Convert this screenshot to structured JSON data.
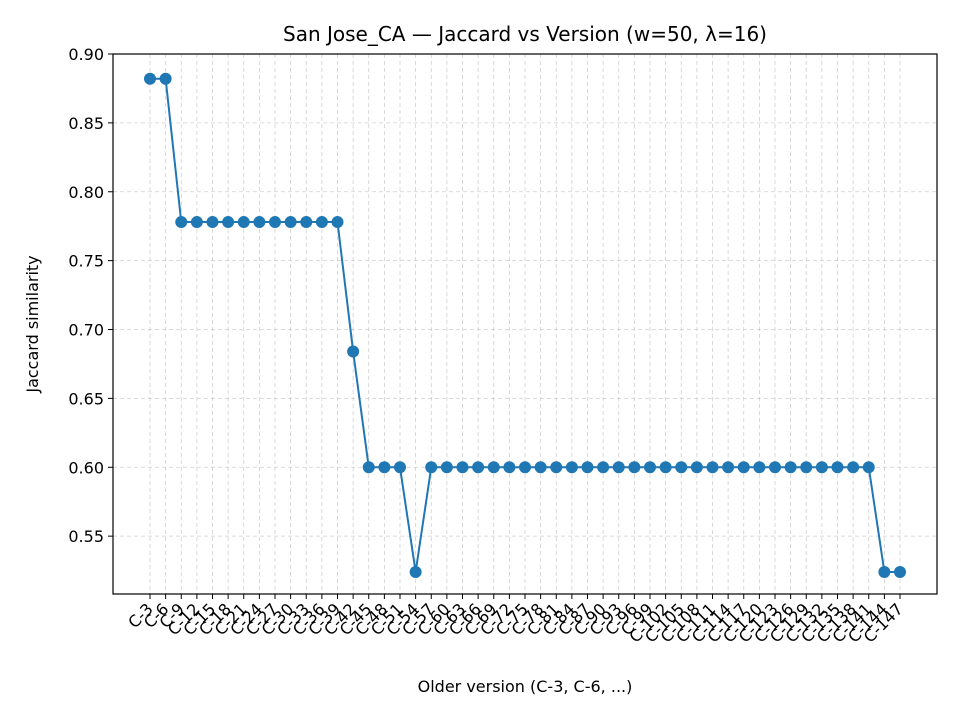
{
  "chart_data": {
    "type": "line",
    "title": "San Jose_CA — Jaccard vs Version (w=50, λ=16)",
    "xlabel": "Older version (C-3, C-6, ...)",
    "ylabel": "Jaccard similarity",
    "ylim": [
      0.508,
      0.9
    ],
    "yticks": [
      "0.55",
      "0.60",
      "0.65",
      "0.70",
      "0.75",
      "0.80",
      "0.85",
      "0.90"
    ],
    "grid": true,
    "color": "#1f77b4",
    "categories": [
      "C-3",
      "C-6",
      "C-9",
      "C-12",
      "C-15",
      "C-18",
      "C-21",
      "C-24",
      "C-27",
      "C-30",
      "C-33",
      "C-36",
      "C-39",
      "C-42",
      "C-45",
      "C-48",
      "C-51",
      "C-54",
      "C-57",
      "C-60",
      "C-63",
      "C-66",
      "C-69",
      "C-72",
      "C-75",
      "C-78",
      "C-81",
      "C-84",
      "C-87",
      "C-90",
      "C-93",
      "C-96",
      "C-99",
      "C-102",
      "C-105",
      "C-108",
      "C-111",
      "C-114",
      "C-117",
      "C-120",
      "C-123",
      "C-126",
      "C-129",
      "C-132",
      "C-135",
      "C-138",
      "C-141",
      "C-144",
      "C-147"
    ],
    "values": [
      0.882,
      0.882,
      0.778,
      0.778,
      0.778,
      0.778,
      0.778,
      0.778,
      0.778,
      0.778,
      0.778,
      0.778,
      0.778,
      0.684,
      0.6,
      0.6,
      0.6,
      0.524,
      0.6,
      0.6,
      0.6,
      0.6,
      0.6,
      0.6,
      0.6,
      0.6,
      0.6,
      0.6,
      0.6,
      0.6,
      0.6,
      0.6,
      0.6,
      0.6,
      0.6,
      0.6,
      0.6,
      0.6,
      0.6,
      0.6,
      0.6,
      0.6,
      0.6,
      0.6,
      0.6,
      0.6,
      0.6,
      0.524,
      0.524
    ]
  }
}
